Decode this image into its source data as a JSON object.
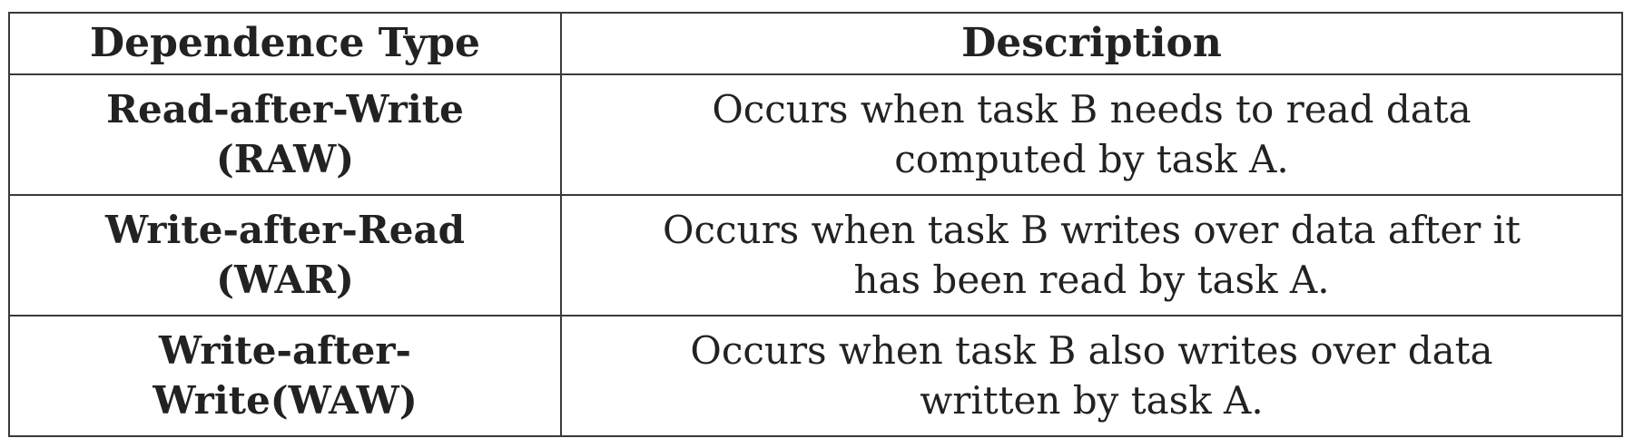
{
  "table": {
    "headers": [
      "Dependence Type",
      "Description"
    ],
    "rows": [
      {
        "type_lines": [
          "Read-after-Write",
          "(RAW)"
        ],
        "desc_lines": [
          "Occurs when task B needs to read data",
          "computed by task A."
        ]
      },
      {
        "type_lines": [
          "Write-after-Read",
          "(WAR)"
        ],
        "desc_lines": [
          "Occurs when task B writes over data after it",
          "has been read by task A."
        ]
      },
      {
        "type_lines": [
          "Write-after-",
          "Write(WAW)"
        ],
        "desc_lines": [
          "Occurs when task B also writes over data",
          "written by task A."
        ]
      }
    ]
  }
}
